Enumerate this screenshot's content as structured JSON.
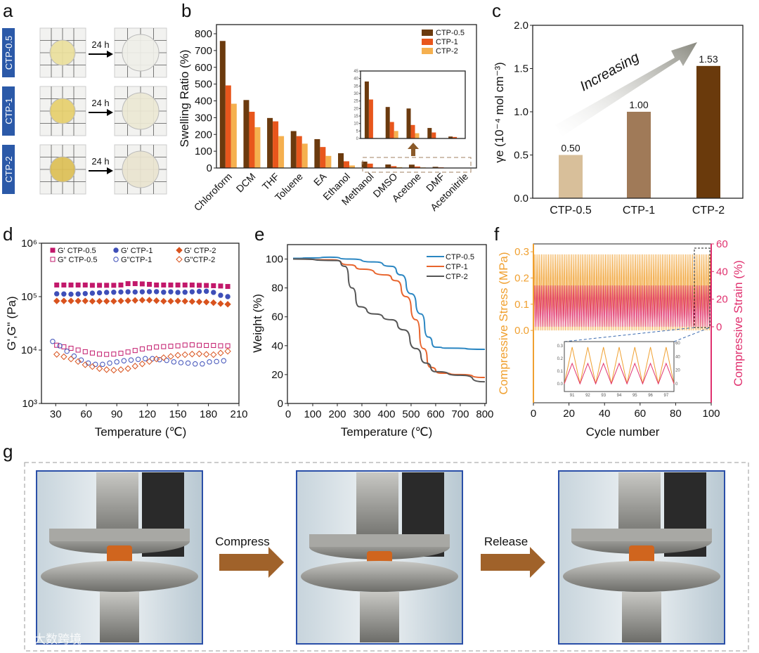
{
  "panel_labels": {
    "a": "a",
    "b": "b",
    "c": "c",
    "d": "d",
    "e": "e",
    "f": "f",
    "g": "g"
  },
  "panel_a": {
    "samples": [
      "CTP-0.5",
      "CTP-1",
      "CTP-2"
    ],
    "arrow_label": "24 h",
    "colors": {
      "tag": "#2b59a8",
      "before": [
        "#eadf9c",
        "#e6cf6c",
        "#dcbf55"
      ],
      "after": [
        "#efefe8",
        "#ece8d4",
        "#e9e4cf"
      ]
    }
  },
  "chart_data": [
    {
      "id": "b",
      "type": "bar",
      "ylabel": "Swelling Ratio (%)",
      "xlabel": "",
      "ylim": [
        0,
        800
      ],
      "yticks": [
        0,
        100,
        200,
        300,
        400,
        500,
        600,
        700,
        800
      ],
      "categories": [
        "Chloroform",
        "DCM",
        "THF",
        "Toluene",
        "EA",
        "Ethanol",
        "Methanol",
        "DMSO",
        "Acetone",
        "DMF",
        "Acetonitrile"
      ],
      "series": [
        {
          "name": "CTP-0.5",
          "color": "#6b3a0e",
          "values": [
            757,
            405,
            298,
            220,
            172,
            88,
            38,
            21,
            20,
            7,
            1.3
          ]
        },
        {
          "name": "CTP-1",
          "color": "#e8561c",
          "values": [
            492,
            335,
            278,
            190,
            125,
            40,
            26,
            11,
            9,
            4,
            1
          ]
        },
        {
          "name": "CTP-2",
          "color": "#f5b04f",
          "values": [
            383,
            243,
            190,
            145,
            72,
            15,
            0.3,
            5,
            3.5,
            0.2,
            0.1
          ]
        }
      ],
      "legend": "top-right",
      "inset": {
        "categories_from": 6,
        "ylim": [
          0,
          45
        ],
        "yticks": [
          0,
          5,
          10,
          15,
          20,
          25,
          30,
          35,
          40,
          45
        ]
      }
    },
    {
      "id": "c",
      "type": "bar",
      "ylabel": "γe (10⁻⁴ mol cm⁻³)",
      "ylim": [
        0,
        2.0
      ],
      "yticks": [
        "0.0",
        "0.5",
        "1.0",
        "1.5",
        "2.0"
      ],
      "categories": [
        "CTP-0.5",
        "CTP-1",
        "CTP-2"
      ],
      "values": [
        0.5,
        1.0,
        1.53
      ],
      "data_labels": [
        "0.50",
        "1.00",
        "1.53"
      ],
      "colors": [
        "#d8bf9a",
        "#a07a58",
        "#6a3a0c"
      ],
      "annotation": "Increasing"
    },
    {
      "id": "d",
      "type": "scatter",
      "xlabel": "Temperature (℃)",
      "ylabel": "G',G\" (Pa)",
      "xlim": [
        16,
        210
      ],
      "xticks": [
        30,
        60,
        90,
        120,
        150,
        180,
        210
      ],
      "ylim_log10": [
        3,
        6
      ],
      "yticks": [
        "10³",
        "10⁴",
        "10⁵",
        "10⁶"
      ],
      "legend": "top",
      "x": [
        31,
        38,
        45,
        52,
        59,
        66,
        73,
        80,
        87,
        94,
        101,
        108,
        115,
        122,
        129,
        136,
        143,
        150,
        157,
        164,
        171,
        178,
        185,
        192,
        199
      ],
      "series": [
        {
          "name": "G' CTP-0.5",
          "color": "#c2186b",
          "marker": "square",
          "filled": true,
          "values": [
            165000,
            165000,
            165000,
            165000,
            165000,
            163000,
            163000,
            163000,
            163000,
            165000,
            175000,
            175000,
            173000,
            170000,
            165000,
            165000,
            165000,
            165000,
            165000,
            165000,
            163000,
            162000,
            160000,
            158000,
            155000
          ]
        },
        {
          "name": "G' CTP-1",
          "color": "#3e4fb8",
          "marker": "circle",
          "filled": true,
          "values": [
            113000,
            112000,
            111000,
            112000,
            114000,
            116000,
            118000,
            120000,
            121000,
            122000,
            123000,
            122000,
            123000,
            124000,
            124000,
            121000,
            123000,
            120000,
            121000,
            123000,
            125000,
            126000,
            120000,
            106000,
            100000
          ]
        },
        {
          "name": "G' CTP-2",
          "color": "#d9531e",
          "marker": "diamond",
          "filled": true,
          "values": [
            83000,
            83000,
            83000,
            83000,
            83000,
            82000,
            82000,
            82000,
            82000,
            83000,
            84000,
            85000,
            86000,
            86000,
            84000,
            82000,
            82000,
            83000,
            82000,
            81000,
            80000,
            79000,
            77000,
            74000,
            72000
          ]
        },
        {
          "name": "G\" CTP-0.5",
          "color": "#c2186b",
          "marker": "square",
          "filled": false,
          "values": [
            12300,
            11500,
            10800,
            10000,
            9300,
            8800,
            8400,
            8300,
            8400,
            8700,
            9200,
            9800,
            10500,
            11000,
            11400,
            11600,
            11800,
            12000,
            12400,
            12500,
            12300,
            12200,
            12200,
            12000,
            12000
          ]
        },
        {
          "name": "G\"CTP-1",
          "color": "#3e4fb8",
          "marker": "circle",
          "filled": false,
          "values": [
            14500,
            12000,
            9500,
            7700,
            6500,
            5700,
            5400,
            5400,
            5700,
            6000,
            6300,
            6500,
            6700,
            6900,
            6900,
            6600,
            6400,
            6000,
            5800,
            5700,
            5500,
            5500,
            6000,
            6100,
            6300
          ]
        },
        {
          "name": "G\"CTP-2",
          "color": "#d9531e",
          "marker": "diamond",
          "filled": false,
          "values": [
            8300,
            7500,
            6800,
            6100,
            5300,
            4900,
            4500,
            4300,
            4200,
            4300,
            4500,
            5000,
            5500,
            6100,
            6800,
            7200,
            7600,
            8000,
            8200,
            8400,
            8500,
            8300,
            8200,
            8800,
            9500
          ]
        }
      ]
    },
    {
      "id": "e",
      "type": "line",
      "xlabel": "Temperature (℃)",
      "ylabel": "Weight (%)",
      "xlim": [
        0,
        806
      ],
      "xticks": [
        0,
        100,
        200,
        300,
        400,
        500,
        600,
        700,
        800
      ],
      "ylim": [
        0,
        110
      ],
      "yticks": [
        0,
        20,
        40,
        60,
        80,
        100
      ],
      "legend": "top-right",
      "series": [
        {
          "name": "CTP-0.5",
          "color": "#2a86c2",
          "points": [
            [
              20,
              100.5
            ],
            [
              100,
              100.8
            ],
            [
              170,
              101.3
            ],
            [
              250,
              100
            ],
            [
              350,
              98
            ],
            [
              420,
              95
            ],
            [
              460,
              89
            ],
            [
              500,
              76
            ],
            [
              540,
              62
            ],
            [
              570,
              46
            ],
            [
              600,
              39
            ],
            [
              650,
              38.3
            ],
            [
              800,
              37.5
            ]
          ]
        },
        {
          "name": "CTP-1",
          "color": "#e8642c",
          "points": [
            [
              20,
              100
            ],
            [
              180,
              99.5
            ],
            [
              250,
              96
            ],
            [
              300,
              93
            ],
            [
              400,
              89
            ],
            [
              440,
              85
            ],
            [
              480,
              74
            ],
            [
              520,
              58
            ],
            [
              550,
              38
            ],
            [
              580,
              25
            ],
            [
              620,
              21
            ],
            [
              700,
              20
            ],
            [
              800,
              18
            ]
          ]
        },
        {
          "name": "CTP-2",
          "color": "#555555",
          "points": [
            [
              20,
              100
            ],
            [
              200,
              99
            ],
            [
              230,
              95
            ],
            [
              260,
              80
            ],
            [
              290,
              67
            ],
            [
              350,
              62
            ],
            [
              420,
              58
            ],
            [
              470,
              51
            ],
            [
              520,
              38
            ],
            [
              560,
              28
            ],
            [
              600,
              22
            ],
            [
              700,
              19.5
            ],
            [
              800,
              15
            ]
          ]
        }
      ]
    },
    {
      "id": "f",
      "type": "line",
      "xlabel": "Cycle number",
      "ylabel_left": "Compressive Stress (MPa)",
      "ylabel_right": "Compressive Strain (%)",
      "xlim": [
        0,
        100
      ],
      "xticks": [
        0,
        20,
        40,
        60,
        80,
        100
      ],
      "ylim_left": [
        -0.276,
        0.33
      ],
      "yticks_left": [
        "0.0",
        "0.1",
        "0.2",
        "0.3"
      ],
      "ylim_right": [
        -55,
        60
      ],
      "yticks_right": [
        0,
        20,
        40,
        60
      ],
      "cycles": 100,
      "series": [
        {
          "name": "Compressive Stress",
          "axis": "left",
          "color": "#f0a030",
          "peak": 0.29
        },
        {
          "name": "Compressive Strain",
          "axis": "right",
          "color": "#e0306e",
          "peak": 30
        }
      ],
      "inset": {
        "xticks": [
          91,
          92,
          93,
          94,
          95,
          96,
          97
        ],
        "yticks_left": [
          "0.0",
          "0.1",
          "0.2",
          "0.3"
        ],
        "yticks_right": [
          0,
          20,
          40,
          60
        ],
        "xrange": [
          90.5,
          97.5
        ]
      }
    }
  ],
  "panel_g": {
    "steps": [
      "Compress",
      "Release"
    ],
    "arrow_color": "#a0622a",
    "frame_color": "#2a4fa8"
  },
  "watermark": "大数跨境"
}
